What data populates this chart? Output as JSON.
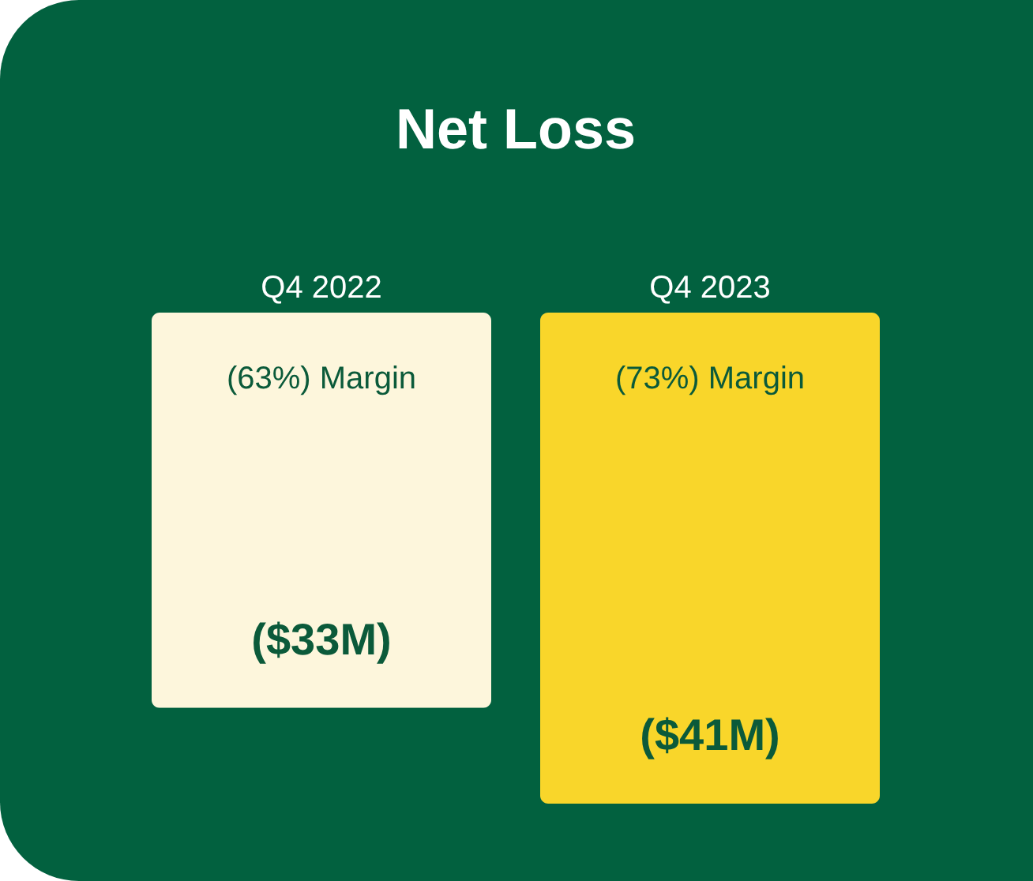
{
  "chart_data": {
    "type": "bar",
    "title": "Net Loss",
    "categories": [
      "Q4 2022",
      "Q4 2023"
    ],
    "values": [
      -33,
      -41
    ],
    "colors": [
      "#fdf6dc",
      "#f9d62a"
    ],
    "value_labels": [
      "($33M)",
      "($41M)"
    ],
    "annotations": [
      "(63%) Margin",
      "(73%) Margin"
    ],
    "tick_labels": "x"
  }
}
